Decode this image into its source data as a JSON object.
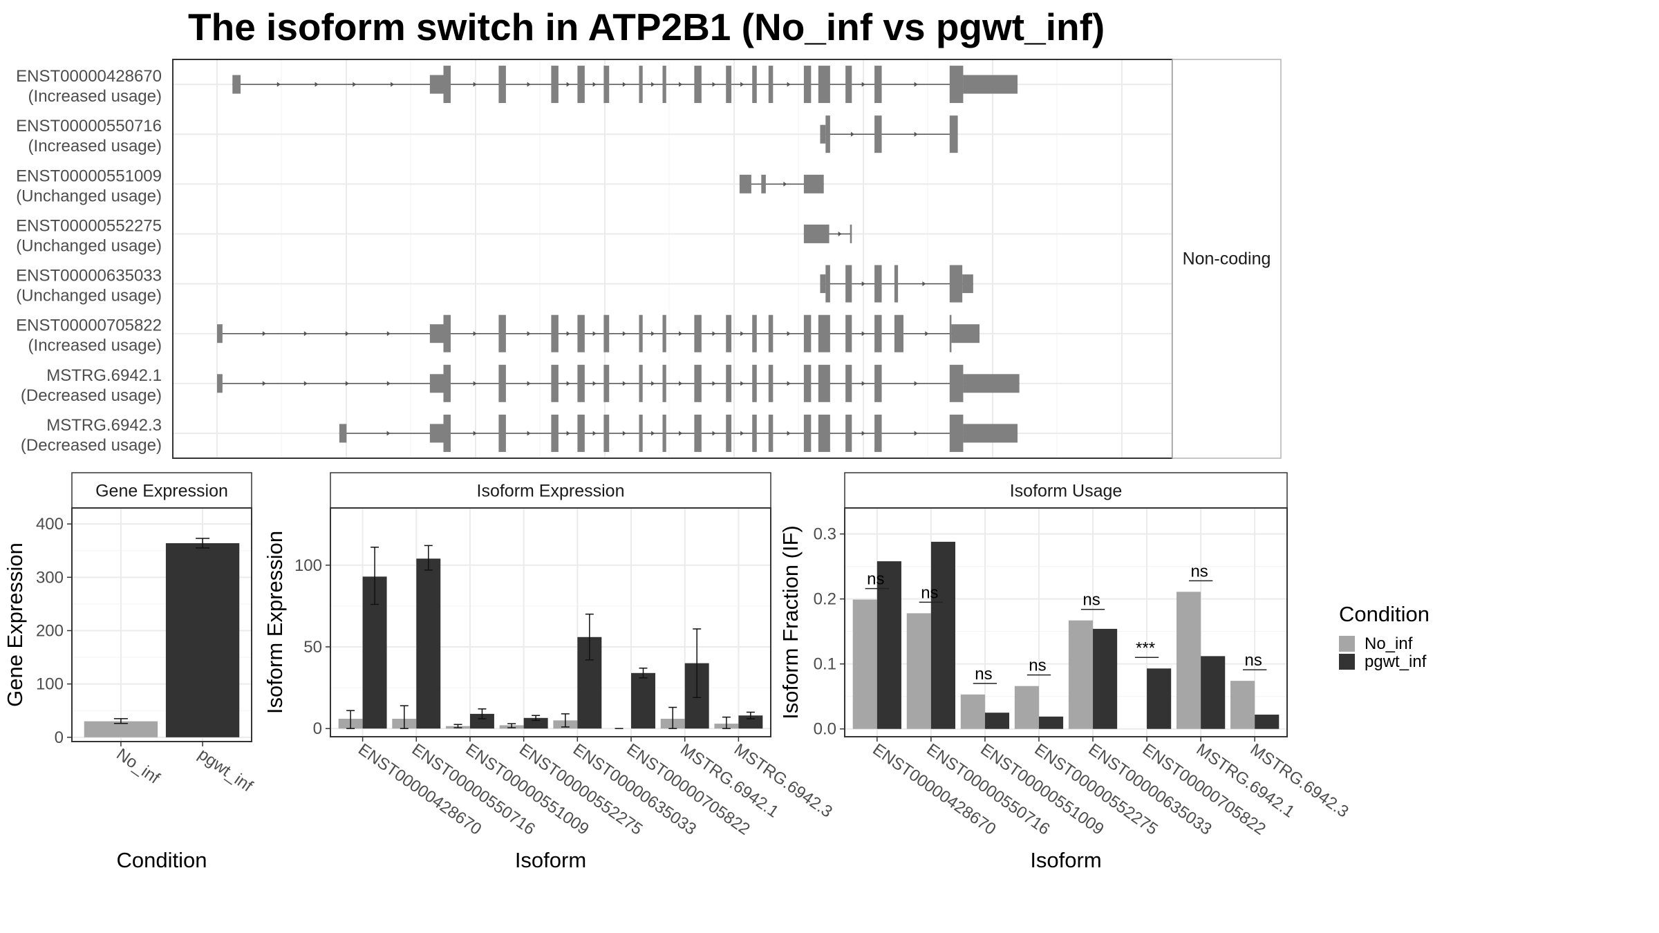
{
  "title": "The isoform switch in ATP2B1 (No_inf vs pgwt_inf)",
  "colors": {
    "No_inf": "#a6a6a6",
    "pgwt_inf": "#333333",
    "exon": "#808080"
  },
  "structure": {
    "facet_label": "Non-coding",
    "genomic_range": [
      0,
      1000
    ],
    "transcripts": [
      {
        "id": "ENST00000428670",
        "status": "(Increased usage)",
        "exons": [
          [
            17,
            26,
            "s"
          ],
          [
            235,
            250,
            "s"
          ],
          [
            250,
            258,
            "t"
          ],
          [
            311,
            319,
            "t"
          ],
          [
            369,
            377,
            "t"
          ],
          [
            398,
            406,
            "t"
          ],
          [
            427,
            433,
            "t"
          ],
          [
            466,
            470,
            "t"
          ],
          [
            492,
            496,
            "t"
          ],
          [
            527,
            535,
            "t"
          ],
          [
            562,
            568,
            "t"
          ],
          [
            591,
            596,
            "t"
          ],
          [
            609,
            614,
            "t"
          ],
          [
            648,
            656,
            "t"
          ],
          [
            664,
            677,
            "t"
          ],
          [
            694,
            701,
            "t"
          ],
          [
            726,
            734,
            "t"
          ],
          [
            809,
            824,
            "t"
          ],
          [
            824,
            884,
            "s"
          ]
        ]
      },
      {
        "id": "ENST00000550716",
        "status": "(Increased usage)",
        "exons": [
          [
            666,
            672,
            "s"
          ],
          [
            672,
            677,
            "t"
          ],
          [
            726,
            734,
            "t"
          ],
          [
            809,
            818,
            "t"
          ]
        ]
      },
      {
        "id": "ENST00000551009",
        "status": "(Unchanged usage)",
        "exons": [
          [
            577,
            590,
            "s"
          ],
          [
            601,
            606,
            "s"
          ],
          [
            648,
            670,
            "s"
          ]
        ]
      },
      {
        "id": "ENST00000552275",
        "status": "(Unchanged usage)",
        "exons": [
          [
            648,
            676,
            "s"
          ],
          [
            699,
            701,
            "s"
          ]
        ]
      },
      {
        "id": "ENST00000635033",
        "status": "(Unchanged usage)",
        "exons": [
          [
            666,
            672,
            "s"
          ],
          [
            672,
            677,
            "t"
          ],
          [
            694,
            701,
            "t"
          ],
          [
            726,
            734,
            "t"
          ],
          [
            748,
            752,
            "t"
          ],
          [
            809,
            823,
            "t"
          ],
          [
            823,
            835,
            "s"
          ]
        ]
      },
      {
        "id": "ENST00000705822",
        "status": "(Increased usage)",
        "exons": [
          [
            0,
            6,
            "s"
          ],
          [
            235,
            250,
            "s"
          ],
          [
            250,
            258,
            "t"
          ],
          [
            311,
            319,
            "t"
          ],
          [
            369,
            377,
            "t"
          ],
          [
            398,
            406,
            "t"
          ],
          [
            427,
            433,
            "t"
          ],
          [
            466,
            470,
            "t"
          ],
          [
            492,
            496,
            "t"
          ],
          [
            527,
            535,
            "t"
          ],
          [
            562,
            568,
            "t"
          ],
          [
            591,
            596,
            "t"
          ],
          [
            609,
            614,
            "t"
          ],
          [
            648,
            656,
            "t"
          ],
          [
            664,
            677,
            "t"
          ],
          [
            694,
            701,
            "t"
          ],
          [
            726,
            734,
            "t"
          ],
          [
            748,
            758,
            "t"
          ],
          [
            809,
            811,
            "t"
          ],
          [
            811,
            842,
            "s"
          ]
        ]
      },
      {
        "id": "MSTRG.6942.1",
        "status": "(Decreased usage)",
        "exons": [
          [
            0,
            6,
            "s"
          ],
          [
            235,
            250,
            "s"
          ],
          [
            250,
            258,
            "t"
          ],
          [
            311,
            319,
            "t"
          ],
          [
            369,
            377,
            "t"
          ],
          [
            398,
            406,
            "t"
          ],
          [
            427,
            433,
            "t"
          ],
          [
            466,
            470,
            "t"
          ],
          [
            492,
            496,
            "t"
          ],
          [
            527,
            535,
            "t"
          ],
          [
            562,
            568,
            "t"
          ],
          [
            591,
            596,
            "t"
          ],
          [
            609,
            614,
            "t"
          ],
          [
            648,
            656,
            "t"
          ],
          [
            664,
            677,
            "t"
          ],
          [
            694,
            701,
            "t"
          ],
          [
            726,
            734,
            "t"
          ],
          [
            809,
            824,
            "t"
          ],
          [
            824,
            886,
            "s"
          ]
        ]
      },
      {
        "id": "MSTRG.6942.3",
        "status": "(Decreased usage)",
        "exons": [
          [
            135,
            143,
            "s"
          ],
          [
            235,
            250,
            "s"
          ],
          [
            250,
            258,
            "t"
          ],
          [
            311,
            319,
            "t"
          ],
          [
            369,
            377,
            "t"
          ],
          [
            398,
            406,
            "t"
          ],
          [
            427,
            433,
            "t"
          ],
          [
            466,
            470,
            "t"
          ],
          [
            492,
            496,
            "t"
          ],
          [
            527,
            535,
            "t"
          ],
          [
            562,
            568,
            "t"
          ],
          [
            591,
            596,
            "t"
          ],
          [
            609,
            614,
            "t"
          ],
          [
            648,
            656,
            "t"
          ],
          [
            664,
            677,
            "t"
          ],
          [
            694,
            701,
            "t"
          ],
          [
            726,
            734,
            "t"
          ],
          [
            809,
            824,
            "t"
          ],
          [
            824,
            884,
            "s"
          ]
        ]
      }
    ]
  },
  "chart_data": [
    {
      "type": "bar",
      "title": "Gene Expression",
      "xlabel": "Condition",
      "ylabel": "Gene Expression",
      "ylim": [
        -8,
        430
      ],
      "yticks": [
        0,
        100,
        200,
        300,
        400
      ],
      "categories": [
        "No_inf",
        "pgwt_inf"
      ],
      "series": [
        {
          "name": "No_inf",
          "values": [
            30,
            null
          ],
          "err_low": [
            26,
            null
          ],
          "err_high": [
            35,
            null
          ]
        },
        {
          "name": "pgwt_inf",
          "values": [
            null,
            364
          ],
          "err_low": [
            null,
            355
          ],
          "err_high": [
            null,
            373
          ]
        }
      ]
    },
    {
      "type": "bar",
      "title": "Isoform Expression",
      "xlabel": "Isoform",
      "ylabel": "Isoform Expression",
      "ylim": [
        -5,
        135
      ],
      "yticks": [
        0,
        50,
        100
      ],
      "categories": [
        "ENST00000428670",
        "ENST00000550716",
        "ENST00000551009",
        "ENST00000552275",
        "ENST00000635033",
        "ENST00000705822",
        "MSTRG.6942.1",
        "MSTRG.6942.3"
      ],
      "series": [
        {
          "name": "No_inf",
          "values": [
            6,
            6,
            1.5,
            2,
            5,
            0,
            6,
            3
          ],
          "err_low": [
            0,
            0,
            0.5,
            0.5,
            1,
            0,
            0,
            0
          ],
          "err_high": [
            11,
            14,
            2.5,
            3,
            9,
            0,
            13,
            7
          ]
        },
        {
          "name": "pgwt_inf",
          "values": [
            93,
            104,
            9,
            6.5,
            56,
            34,
            40,
            8
          ],
          "err_low": [
            76,
            97,
            6,
            5,
            42,
            31,
            19,
            6
          ],
          "err_high": [
            111,
            112,
            12,
            8,
            70,
            37,
            61,
            10
          ]
        }
      ]
    },
    {
      "type": "bar",
      "title": "Isoform Usage",
      "xlabel": "Isoform",
      "ylabel": "Isoform Fraction (IF)",
      "ylim": [
        -0.012,
        0.34
      ],
      "yticks": [
        0.0,
        0.1,
        0.2,
        0.3
      ],
      "categories": [
        "ENST00000428670",
        "ENST00000550716",
        "ENST00000551009",
        "ENST00000552275",
        "ENST00000635033",
        "ENST00000705822",
        "MSTRG.6942.1",
        "MSTRG.6942.3"
      ],
      "series": [
        {
          "name": "No_inf",
          "values": [
            0.199,
            0.178,
            0.053,
            0.066,
            0.167,
            0.0,
            0.211,
            0.074
          ]
        },
        {
          "name": "pgwt_inf",
          "values": [
            0.258,
            0.288,
            0.025,
            0.019,
            0.154,
            0.093,
            0.112,
            0.022
          ]
        }
      ],
      "significance": [
        "ns",
        "ns",
        "ns",
        "ns",
        "ns",
        "***",
        "ns",
        "ns"
      ]
    }
  ],
  "legend": {
    "title": "Condition",
    "items": [
      "No_inf",
      "pgwt_inf"
    ]
  }
}
